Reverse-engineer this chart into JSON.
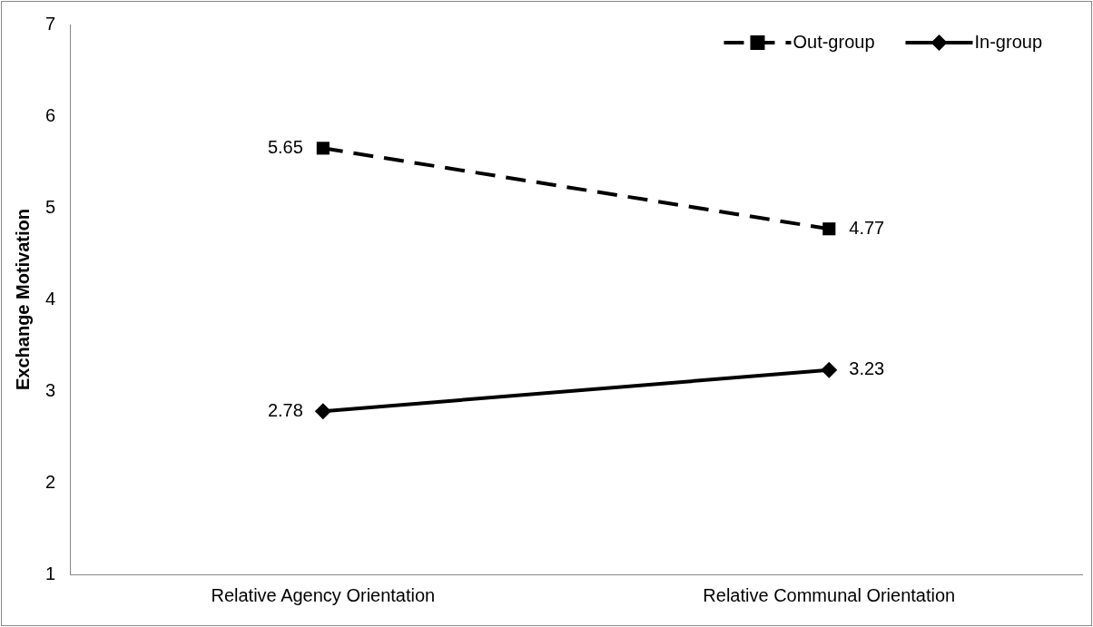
{
  "chart_data": {
    "type": "line",
    "ylabel": "Exchange Motivation",
    "categories": [
      "Relative Agency Orientation",
      "Relative Communal Orientation"
    ],
    "series": [
      {
        "name": "Out-group",
        "color": "#000000",
        "values": [
          5.65,
          4.77
        ],
        "marker": "square",
        "line_style": "dashed"
      },
      {
        "name": "In-group",
        "color": "#000000",
        "values": [
          2.78,
          3.23
        ],
        "marker": "diamond",
        "line_style": "solid"
      }
    ],
    "ylim": [
      1,
      7
    ],
    "yticks": [
      1,
      2,
      3,
      4,
      5,
      6,
      7
    ],
    "grid": false,
    "legend": "top right",
    "data_labels": true
  }
}
